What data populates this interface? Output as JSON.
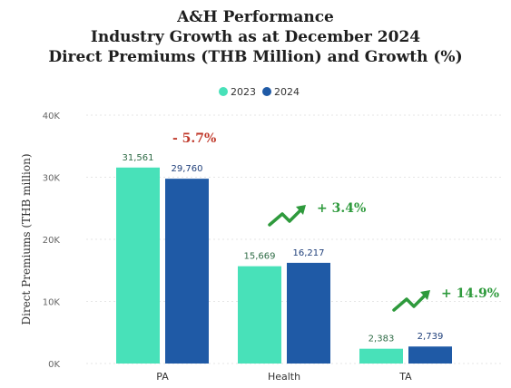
{
  "title_lines": [
    "A&H Performance",
    "Industry Growth as at December 2024",
    "Direct Premiums (THB Million) and Growth (%)"
  ],
  "chart_data": {
    "type": "bar",
    "title": "A&H Performance Industry Growth as at December 2024 Direct Premiums (THB Million) and Growth (%)",
    "categories": [
      "PA",
      "Health",
      "TA"
    ],
    "series": [
      {
        "name": "2023",
        "values": [
          31561,
          15669,
          2383
        ],
        "labels": [
          "31,561",
          "15,669",
          "2,383"
        ],
        "color": "#48e1b9"
      },
      {
        "name": "2024",
        "values": [
          29760,
          16217,
          2739
        ],
        "labels": [
          "29,760",
          "16,217",
          "2,739"
        ],
        "color": "#1f5aa6"
      }
    ],
    "growth_labels": [
      "- 5.7%",
      "+ 3.4%",
      "+ 14.9%"
    ],
    "growth_colors": [
      "#c0392b",
      "#2e9a3c",
      "#2e9a3c"
    ],
    "growth_arrows": [
      false,
      true,
      true
    ],
    "ylabel": "Direct Premiums (THB million)",
    "xlabel": "",
    "ylim": [
      0,
      40000
    ],
    "yticks": [
      0,
      10000,
      20000,
      30000,
      40000
    ],
    "ytick_labels": [
      "0K",
      "10K",
      "20K",
      "30K",
      "40K"
    ],
    "grid": true,
    "legend_position": "top-center"
  }
}
